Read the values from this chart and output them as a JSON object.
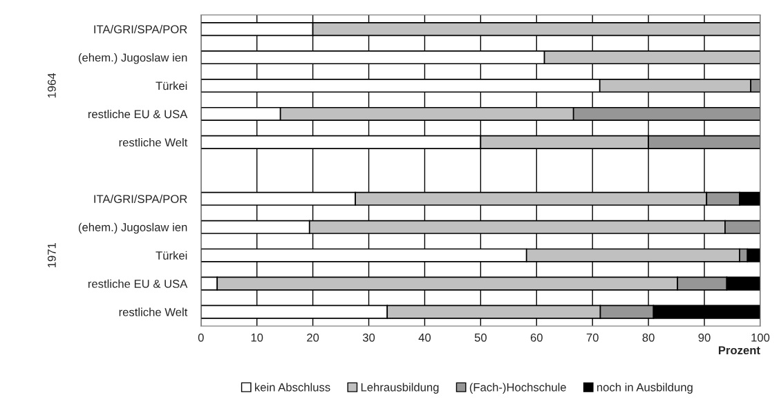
{
  "chart_data": {
    "type": "bar",
    "orientation": "horizontal",
    "stacked": true,
    "categories": [
      "ITA/GRI/SPA/POR",
      "(ehem.) Jugoslaw ien",
      "Türkei",
      "restliche EU & USA",
      "restliche Welt",
      null,
      "ITA/GRI/SPA/POR",
      "(ehem.) Jugoslaw ien",
      "Türkei",
      "restliche EU & USA",
      "restliche Welt"
    ],
    "series": [
      {
        "name": "kein Abschluss",
        "color": "#ffffff",
        "values": [
          20,
          61.4,
          71.3,
          14.2,
          50,
          null,
          27.6,
          19.4,
          58.2,
          2.9,
          33.3
        ]
      },
      {
        "name": "Lehrausbildung",
        "color": "#c0c0c0",
        "values": [
          80,
          38.6,
          27,
          52.4,
          30,
          null,
          62.8,
          74.3,
          38.1,
          82.3,
          38.1
        ]
      },
      {
        "name": "(Fach-)Hochschule",
        "color": "#969696",
        "values": [
          0,
          0,
          1.7,
          33.4,
          20,
          null,
          5.9,
          6.3,
          1.4,
          8.8,
          9.5
        ]
      },
      {
        "name": "noch in Ausbildung",
        "color": "#000000",
        "values": [
          0,
          0,
          0,
          0,
          0,
          null,
          3.7,
          0,
          2.3,
          6.0,
          19.1
        ]
      }
    ],
    "xlabel": "Prozent",
    "xlim": [
      0,
      100
    ],
    "xticks": [
      0,
      10,
      20,
      30,
      40,
      50,
      60,
      70,
      80,
      90,
      100
    ],
    "annotations": [
      "1964",
      "1971"
    ],
    "grid": "x",
    "legend": "bottom"
  }
}
